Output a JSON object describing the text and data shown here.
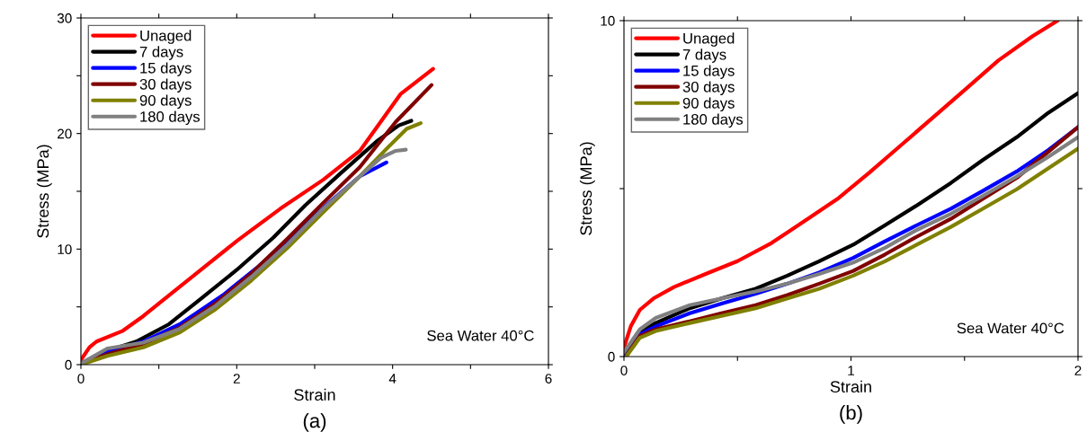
{
  "chart_data": [
    {
      "type": "line",
      "xlabel": "Strain",
      "ylabel": "Stress (MPa)",
      "annotations": [
        "Sea Water 40°C",
        "(a)"
      ],
      "xlim": [
        0,
        6
      ],
      "ylim": [
        0,
        30
      ],
      "xticks": [
        0,
        {
          "value": 1,
          "label": null
        },
        2,
        {
          "value": 3,
          "label": null
        },
        4,
        {
          "value": 5,
          "label": null
        },
        6
      ],
      "yticks": [
        0,
        {
          "value": 5,
          "label": null
        },
        10,
        {
          "value": 15,
          "label": null
        },
        20,
        {
          "value": 25,
          "label": null
        },
        30
      ],
      "legend": "top left",
      "grid": false,
      "marker": "none",
      "line_style": "solid",
      "series": [
        {
          "name": "Unaged",
          "color": "#ff0000",
          "x": [
            0,
            0.11,
            0.2,
            0.53,
            0.8,
            1.13,
            1.54,
            2.0,
            2.56,
            3.11,
            3.58,
            4.1,
            4.52
          ],
          "values": [
            0.4,
            1.5,
            2.0,
            2.9,
            4.2,
            6.0,
            8.2,
            10.7,
            13.5,
            16.0,
            18.5,
            23.4,
            25.6
          ]
        },
        {
          "name": "7 days",
          "color": "#000000",
          "x": [
            0,
            0.3,
            0.71,
            1.13,
            1.54,
            2.0,
            2.47,
            2.88,
            3.34,
            3.81,
            4.08,
            4.24
          ],
          "values": [
            0.1,
            1.1,
            2.0,
            3.5,
            5.7,
            8.2,
            11.0,
            13.8,
            16.6,
            19.4,
            20.7,
            21.1
          ]
        },
        {
          "name": "15 days",
          "color": "#0000ff",
          "x": [
            0,
            0.34,
            0.8,
            1.27,
            1.82,
            2.28,
            2.74,
            3.2,
            3.58,
            3.92
          ],
          "values": [
            0.1,
            1.1,
            2.0,
            3.5,
            6.0,
            8.5,
            11.3,
            14.1,
            16.3,
            17.5
          ]
        },
        {
          "name": "30 days",
          "color": "#800000",
          "x": [
            0,
            0.34,
            0.8,
            1.27,
            1.73,
            2.19,
            2.65,
            3.11,
            3.58,
            4.04,
            4.5
          ],
          "values": [
            0.1,
            0.9,
            1.8,
            3.2,
            5.3,
            7.9,
            10.9,
            14.0,
            17.1,
            21.0,
            24.2
          ]
        },
        {
          "name": "90 days",
          "color": "#808000",
          "x": [
            0,
            0.34,
            0.8,
            1.27,
            1.73,
            2.19,
            2.65,
            3.11,
            3.58,
            3.94,
            4.18,
            4.36
          ],
          "values": [
            0,
            0.75,
            1.5,
            2.8,
            4.8,
            7.3,
            10.1,
            13.2,
            16.3,
            18.8,
            20.4,
            20.9
          ]
        },
        {
          "name": "180 days",
          "color": "#808080",
          "x": [
            0,
            0.34,
            0.8,
            1.27,
            1.73,
            2.19,
            2.65,
            3.11,
            3.58,
            3.85,
            4.04,
            4.17
          ],
          "values": [
            0.1,
            1.4,
            1.9,
            3.1,
            5.1,
            7.6,
            10.4,
            13.5,
            16.3,
            17.9,
            18.5,
            18.6
          ]
        }
      ]
    },
    {
      "type": "line",
      "xlabel": "Strain",
      "ylabel": "Stress (MPa)",
      "annotations": [
        "Sea Water 40°C",
        "(b)"
      ],
      "xlim": [
        0,
        2
      ],
      "ylim": [
        0,
        10
      ],
      "xticks": [
        0,
        {
          "value": 0.5,
          "label": null
        },
        1,
        {
          "value": 1.5,
          "label": null
        },
        2
      ],
      "yticks": [
        0,
        {
          "value": 5,
          "label": null
        },
        10
      ],
      "legend": "top left",
      "grid": false,
      "marker": "none",
      "line_style": "solid",
      "series": [
        {
          "name": "Unaged",
          "color": "#ff0000",
          "x": [
            0,
            0.03,
            0.07,
            0.13,
            0.22,
            0.36,
            0.5,
            0.65,
            0.79,
            0.94,
            1.08,
            1.22,
            1.37,
            1.51,
            1.65,
            1.8,
            1.91
          ],
          "values": [
            0.27,
            0.9,
            1.39,
            1.73,
            2.07,
            2.46,
            2.84,
            3.38,
            4.01,
            4.69,
            5.47,
            6.29,
            7.17,
            7.99,
            8.82,
            9.54,
            10.0
          ]
        },
        {
          "name": "7 days",
          "color": "#000000",
          "x": [
            0,
            0.07,
            0.14,
            0.29,
            0.43,
            0.58,
            0.72,
            0.86,
            1.01,
            1.15,
            1.29,
            1.44,
            1.58,
            1.73,
            1.87,
            2.0
          ],
          "values": [
            0.03,
            0.71,
            1.0,
            1.44,
            1.73,
            2.02,
            2.41,
            2.84,
            3.33,
            3.91,
            4.5,
            5.17,
            5.85,
            6.53,
            7.26,
            7.84
          ]
        },
        {
          "name": "15 days",
          "color": "#0000ff",
          "x": [
            0,
            0.07,
            0.14,
            0.29,
            0.43,
            0.58,
            0.72,
            0.86,
            1.01,
            1.15,
            1.29,
            1.44,
            1.58,
            1.73,
            1.87,
            2.0
          ],
          "values": [
            0.03,
            0.66,
            0.9,
            1.29,
            1.58,
            1.87,
            2.17,
            2.5,
            2.94,
            3.43,
            3.91,
            4.4,
            4.93,
            5.51,
            6.15,
            6.83
          ]
        },
        {
          "name": "30 days",
          "color": "#800000",
          "x": [
            0.01,
            0.07,
            0.14,
            0.29,
            0.43,
            0.58,
            0.72,
            0.86,
            1.01,
            1.15,
            1.29,
            1.44,
            1.58,
            1.73,
            1.87,
            2.0
          ],
          "values": [
            0.03,
            0.61,
            0.81,
            1.05,
            1.29,
            1.53,
            1.83,
            2.17,
            2.55,
            3.04,
            3.57,
            4.1,
            4.69,
            5.32,
            6.1,
            6.83
          ]
        },
        {
          "name": "90 days",
          "color": "#808000",
          "x": [
            0.01,
            0.07,
            0.14,
            0.29,
            0.43,
            0.58,
            0.72,
            0.86,
            1.01,
            1.15,
            1.29,
            1.44,
            1.58,
            1.73,
            1.87,
            2.0
          ],
          "values": [
            0,
            0.56,
            0.76,
            1.0,
            1.21,
            1.44,
            1.73,
            2.02,
            2.41,
            2.84,
            3.33,
            3.86,
            4.4,
            4.98,
            5.61,
            6.19
          ]
        },
        {
          "name": "180 days",
          "color": "#808080",
          "x": [
            0,
            0.07,
            0.14,
            0.29,
            0.43,
            0.58,
            0.72,
            0.86,
            1.01,
            1.15,
            1.29,
            1.44,
            1.58,
            1.73,
            1.87,
            2.0
          ],
          "values": [
            0.13,
            0.81,
            1.15,
            1.53,
            1.73,
            1.94,
            2.17,
            2.46,
            2.8,
            3.24,
            3.77,
            4.25,
            4.78,
            5.36,
            5.95,
            6.53
          ]
        }
      ]
    }
  ]
}
